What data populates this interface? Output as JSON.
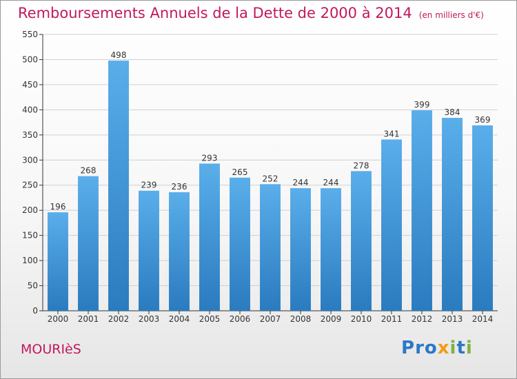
{
  "title": "Remboursements Annuels de la Dette de 2000 à 2014",
  "subtitle": "(en milliers d'€)",
  "place": "MOURIèS",
  "logo": "Proxiti",
  "colors": {
    "title": "#c2185b",
    "bar_top": "#5aaeea",
    "bar_bottom": "#2a7bbf",
    "axis": "#333333",
    "grid": "#d0d0d0"
  },
  "chart_data": {
    "type": "bar",
    "title": "Remboursements Annuels de la Dette de 2000 à 2014",
    "subtitle": "(en milliers d'€)",
    "categories": [
      "2000",
      "2001",
      "2002",
      "2003",
      "2004",
      "2005",
      "2006",
      "2007",
      "2008",
      "2009",
      "2010",
      "2011",
      "2012",
      "2013",
      "2014"
    ],
    "values": [
      196,
      268,
      498,
      239,
      236,
      293,
      265,
      252,
      244,
      244,
      278,
      341,
      399,
      384,
      369
    ],
    "ylim": [
      0,
      550
    ],
    "yticks": [
      0,
      50,
      100,
      150,
      200,
      250,
      300,
      350,
      400,
      450,
      500,
      550
    ],
    "grid": true,
    "data_labels": true
  }
}
